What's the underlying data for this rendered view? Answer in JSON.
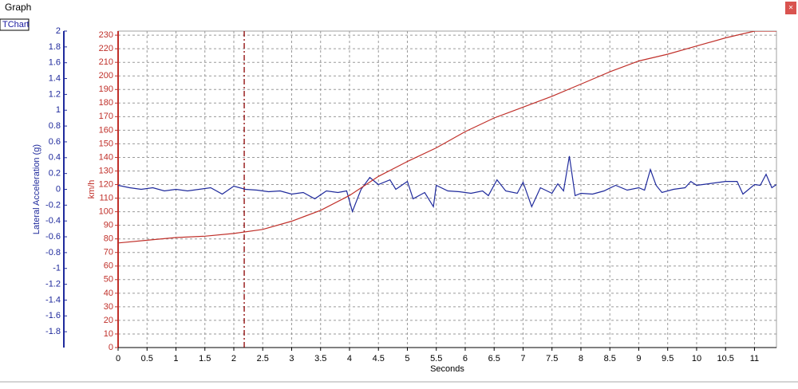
{
  "window": {
    "title": "Graph",
    "tab": "TChart",
    "close": "×"
  },
  "chart_data": {
    "type": "line",
    "xlabel": "Seconds",
    "ylabel": "Lateral Acceleration (g)",
    "y2label": "km/h",
    "xlim": [
      0,
      11.38
    ],
    "xticks": [
      0,
      0.5,
      1,
      1.5,
      2,
      2.5,
      3,
      3.5,
      4,
      4.5,
      5,
      5.5,
      6,
      6.5,
      7,
      7.5,
      8,
      8.5,
      9,
      9.5,
      10,
      10.5,
      11
    ],
    "ylim": [
      -2,
      2
    ],
    "yticks": [
      -1.8,
      -1.6,
      -1.4,
      -1.2,
      -1,
      -0.8,
      -0.6,
      -0.4,
      -0.2,
      0,
      0.2,
      0.4,
      0.6,
      0.8,
      1,
      1.2,
      1.4,
      1.6,
      1.8,
      2
    ],
    "y2lim": [
      0,
      233
    ],
    "y2ticks": [
      0,
      10,
      20,
      30,
      40,
      50,
      60,
      70,
      80,
      90,
      100,
      110,
      120,
      130,
      140,
      150,
      160,
      170,
      180,
      190,
      200,
      210,
      220,
      230
    ],
    "grid": true,
    "cursor": 2.18,
    "series": [
      {
        "axis": "y",
        "color": "#1f2a9c",
        "x": [
          0,
          0.2,
          0.4,
          0.6,
          0.8,
          1.0,
          1.2,
          1.4,
          1.6,
          1.8,
          2.0,
          2.2,
          2.4,
          2.6,
          2.8,
          3.0,
          3.2,
          3.4,
          3.6,
          3.8,
          3.95,
          4.05,
          4.2,
          4.35,
          4.5,
          4.7,
          4.8,
          5.0,
          5.1,
          5.3,
          5.45,
          5.5,
          5.7,
          5.9,
          6.1,
          6.3,
          6.4,
          6.55,
          6.7,
          6.9,
          7.0,
          7.15,
          7.3,
          7.5,
          7.6,
          7.7,
          7.8,
          7.9,
          8.0,
          8.2,
          8.4,
          8.6,
          8.8,
          9.0,
          9.1,
          9.2,
          9.3,
          9.4,
          9.6,
          9.8,
          9.9,
          10.0,
          10.2,
          10.5,
          10.7,
          10.8,
          11.0,
          11.1,
          11.2,
          11.3,
          11.38
        ],
        "values": [
          0.05,
          0.02,
          0.0,
          0.02,
          -0.02,
          0.0,
          -0.02,
          0.0,
          0.02,
          -0.06,
          0.04,
          0.0,
          -0.01,
          -0.03,
          -0.02,
          -0.06,
          -0.04,
          -0.12,
          -0.02,
          -0.04,
          -0.02,
          -0.28,
          0.0,
          0.15,
          0.06,
          0.12,
          0.0,
          0.1,
          -0.12,
          -0.04,
          -0.22,
          0.05,
          -0.02,
          -0.03,
          -0.05,
          -0.02,
          -0.08,
          0.12,
          -0.02,
          -0.05,
          0.09,
          -0.22,
          0.02,
          -0.05,
          0.07,
          -0.02,
          0.42,
          -0.08,
          -0.05,
          -0.06,
          -0.02,
          0.05,
          -0.01,
          0.02,
          -0.01,
          0.25,
          0.05,
          -0.04,
          0.0,
          0.02,
          0.1,
          0.05,
          0.07,
          0.1,
          0.1,
          -0.06,
          0.06,
          0.05,
          0.19,
          0.02,
          0.06
        ]
      },
      {
        "axis": "y2",
        "color": "#c0302a",
        "x": [
          0,
          0.5,
          1,
          1.5,
          2,
          2.5,
          3,
          3.5,
          4,
          4.5,
          5,
          5.5,
          6,
          6.5,
          7,
          7.5,
          8,
          8.5,
          9,
          9.5,
          10,
          10.5,
          11,
          11.38
        ],
        "values": [
          77,
          79,
          81,
          82,
          84,
          87,
          93,
          101,
          112,
          126,
          137,
          147,
          159,
          169,
          177,
          185,
          194,
          203,
          211,
          216,
          222,
          228,
          233,
          233
        ]
      }
    ]
  }
}
